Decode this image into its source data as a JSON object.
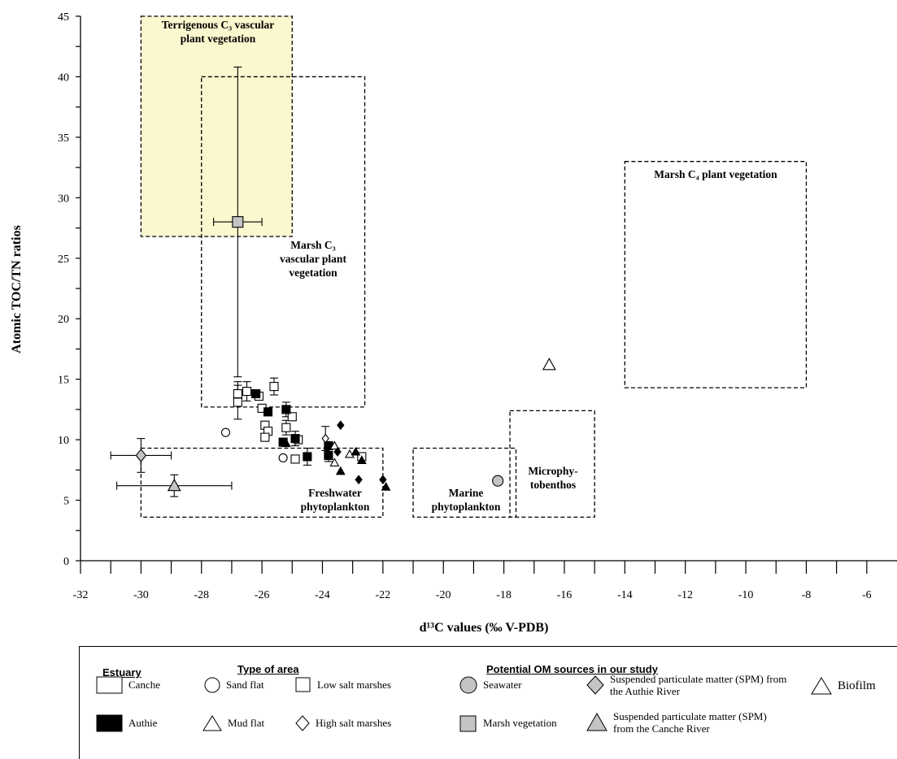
{
  "chart_data": {
    "type": "scatter",
    "xlabel": "d¹³C values (‰ V-PDB)",
    "ylabel": "Atomic TOC/TN ratios",
    "xlim": [
      -32,
      -5
    ],
    "ylim": [
      0,
      45
    ],
    "x_ticks": [
      -32,
      -30,
      -28,
      -26,
      -24,
      -22,
      -20,
      -18,
      -16,
      -14,
      -12,
      -10,
      -8,
      -6
    ],
    "y_ticks": [
      0,
      5,
      10,
      15,
      20,
      25,
      30,
      35,
      40,
      45
    ],
    "regions": [
      {
        "id": "terrigenous",
        "label": "Terrigenous C₃ vascular plant vegetation",
        "x": [
          -30,
          -25
        ],
        "y": [
          26.8,
          45
        ],
        "fill": "#fbf7cf"
      },
      {
        "id": "marsh-c3",
        "label": "Marsh C₃ vascular plant vegetation",
        "x": [
          -28,
          -22.6
        ],
        "y": [
          12.7,
          40
        ],
        "fill": "none"
      },
      {
        "id": "marsh-c4",
        "label": "Marsh C₄ plant vegetation",
        "x": [
          -14,
          -8
        ],
        "y": [
          14.3,
          33
        ],
        "fill": "none"
      },
      {
        "id": "freshwater",
        "label": "Freshwater phytoplankton",
        "x": [
          -30,
          -22
        ],
        "y": [
          3.6,
          9.3
        ],
        "fill": "none"
      },
      {
        "id": "marine",
        "label": "Marine phytoplankton",
        "x": [
          -21,
          -17.6
        ],
        "y": [
          3.6,
          9.3
        ],
        "fill": "none"
      },
      {
        "id": "microphytobenthos",
        "label": "Microphy-tobenthos",
        "x": [
          -17.8,
          -15
        ],
        "y": [
          3.6,
          12.4
        ],
        "fill": "none"
      }
    ],
    "series": [
      {
        "name": "Canche – Low salt marshes",
        "marker": "square",
        "fill": "#ffffff",
        "points": [
          {
            "x": -26.8,
            "y": 13.8,
            "yerr": 1.0
          },
          {
            "x": -26.8,
            "y": 13.1,
            "yerr": 1.4
          },
          {
            "x": -26.5,
            "y": 14.0,
            "yerr": 0.8
          },
          {
            "x": -26.1,
            "y": 13.6
          },
          {
            "x": -26.0,
            "y": 12.6
          },
          {
            "x": -25.6,
            "y": 14.4,
            "yerr": 0.7
          },
          {
            "x": -25.9,
            "y": 11.2
          },
          {
            "x": -25.8,
            "y": 10.7
          },
          {
            "x": -25.9,
            "y": 10.2
          },
          {
            "x": -25.2,
            "y": 11.0,
            "yerr": 0.6
          },
          {
            "x": -25.0,
            "y": 11.9
          },
          {
            "x": -24.8,
            "y": 10.0
          },
          {
            "x": -24.9,
            "y": 8.4
          },
          {
            "x": -22.7,
            "y": 8.6
          }
        ]
      },
      {
        "name": "Authie – Low salt marshes",
        "marker": "square",
        "fill": "#000000",
        "points": [
          {
            "x": -26.2,
            "y": 13.8
          },
          {
            "x": -25.8,
            "y": 12.3
          },
          {
            "x": -25.2,
            "y": 12.5,
            "yerr": 0.6
          },
          {
            "x": -25.3,
            "y": 9.8
          },
          {
            "x": -24.9,
            "y": 10.1,
            "yerr": 0.6
          },
          {
            "x": -24.5,
            "y": 8.6,
            "yerr": 0.7
          },
          {
            "x": -23.8,
            "y": 9.5
          },
          {
            "x": -23.8,
            "y": 8.7,
            "yerr": 0.5
          }
        ]
      },
      {
        "name": "Canche – Sand flat",
        "marker": "circle",
        "fill": "#ffffff",
        "points": [
          {
            "x": -27.2,
            "y": 10.6
          },
          {
            "x": -25.3,
            "y": 8.5
          }
        ]
      },
      {
        "name": "Canche – Mud flat",
        "marker": "triangle",
        "fill": "#ffffff",
        "points": [
          {
            "x": -23.6,
            "y": 9.5
          },
          {
            "x": -23.6,
            "y": 8.1
          },
          {
            "x": -23.1,
            "y": 8.8
          }
        ]
      },
      {
        "name": "Authie – Mud flat",
        "marker": "triangle",
        "fill": "#000000",
        "points": [
          {
            "x": -25.2,
            "y": 9.7
          },
          {
            "x": -23.4,
            "y": 7.4
          },
          {
            "x": -22.9,
            "y": 9.0
          },
          {
            "x": -22.7,
            "y": 8.3
          },
          {
            "x": -21.9,
            "y": 6.1
          }
        ]
      },
      {
        "name": "Canche – High salt marshes",
        "marker": "diamond",
        "fill": "#ffffff",
        "points": [
          {
            "x": -23.9,
            "y": 10.1,
            "yerr": 1.0
          }
        ]
      },
      {
        "name": "Authie – High salt marshes",
        "marker": "diamond",
        "fill": "#000000",
        "points": [
          {
            "x": -23.4,
            "y": 11.2
          },
          {
            "x": -23.5,
            "y": 9.0
          },
          {
            "x": -22.8,
            "y": 6.7
          },
          {
            "x": -22.0,
            "y": 6.7
          }
        ]
      },
      {
        "name": "Seawater",
        "marker": "circle",
        "fill": "#c4c4c4",
        "size": 13,
        "points": [
          {
            "x": -18.2,
            "y": 6.6
          }
        ]
      },
      {
        "name": "Marsh vegetation",
        "marker": "square",
        "fill": "#c4c4c4",
        "size": 13,
        "points": [
          {
            "x": -26.8,
            "y": 28.0,
            "yerr": 12.8,
            "xerr": 0.8
          }
        ]
      },
      {
        "name": "SPM Authie River",
        "marker": "diamond",
        "fill": "#c4c4c4",
        "size": 15,
        "points": [
          {
            "x": -30.0,
            "y": 8.7,
            "yerr": 1.4,
            "xerr": 1.0
          }
        ]
      },
      {
        "name": "SPM Canche River",
        "marker": "triangle",
        "fill": "#c4c4c4",
        "size": 15,
        "points": [
          {
            "x": -28.9,
            "y": 6.2,
            "yerr": 0.9,
            "xerr": 1.9
          }
        ]
      },
      {
        "name": "Biofilm",
        "marker": "triangle",
        "fill": "#ffffff",
        "size": 15,
        "points": [
          {
            "x": -16.5,
            "y": 16.2
          }
        ]
      }
    ]
  },
  "legend": {
    "estuary": {
      "heading": "Estuary",
      "items": [
        "Canche",
        "Authie"
      ]
    },
    "area": {
      "heading": "Type of area",
      "items": [
        "Sand flat",
        "Low salt marshes",
        "Mud flat",
        "High salt marshes"
      ]
    },
    "sources": {
      "heading": "Potential OM sources in our study",
      "items": [
        "Seawater",
        "Suspended particulate matter (SPM) from the Authie River",
        "Biofilm",
        "Marsh vegetation",
        "Suspended particulate matter (SPM) from the Canche River"
      ]
    }
  }
}
